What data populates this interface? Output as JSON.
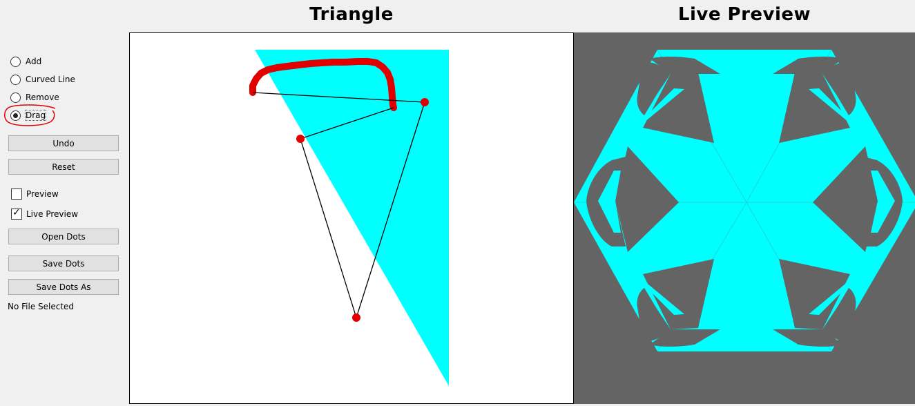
{
  "titles": {
    "triangle": "Triangle",
    "preview": "Live Preview"
  },
  "mode_options": [
    {
      "label": "Add",
      "selected": false
    },
    {
      "label": "Curved Line",
      "selected": false
    },
    {
      "label": "Remove",
      "selected": false
    },
    {
      "label": "Drag",
      "selected": true
    }
  ],
  "buttons": {
    "undo": "Undo",
    "reset": "Reset",
    "open_dots": "Open Dots",
    "save_dots": "Save Dots",
    "save_dots_as": "Save Dots As"
  },
  "checkboxes": {
    "preview": {
      "label": "Preview",
      "checked": false
    },
    "live_preview": {
      "label": "Live Preview",
      "checked": true
    }
  },
  "file_status": "No File Selected",
  "colors": {
    "cyan": "#00ffff",
    "dot_red": "#e00000",
    "preview_bg": "#646464",
    "annotation": "#e00000"
  },
  "icons": {
    "checkmark": "✓"
  }
}
